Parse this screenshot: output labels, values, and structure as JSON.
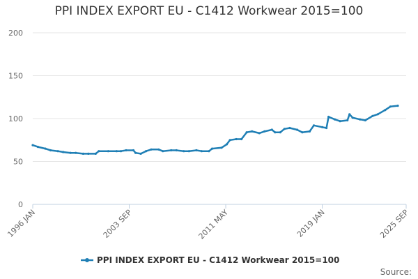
{
  "chart_data": {
    "type": "line",
    "title": "PPI INDEX EXPORT EU - C1412 Workwear 2015=100",
    "xlabel": "",
    "ylabel": "",
    "ylim": [
      0,
      200
    ],
    "yticks": [
      0,
      50,
      100,
      150,
      200
    ],
    "xlim": [
      "1996-01",
      "2025-09"
    ],
    "xticks": [
      {
        "label": "1996 JAN",
        "date": "1996-01"
      },
      {
        "label": "2003 SEP",
        "date": "2003-09"
      },
      {
        "label": "2011 MAY",
        "date": "2011-05"
      },
      {
        "label": "2019 JAN",
        "date": "2019-01"
      },
      {
        "label": "2025 SEP",
        "date": "2025-09"
      }
    ],
    "grid": "horizontal",
    "legend_position": "bottom",
    "series": [
      {
        "name": "PPI INDEX EXPORT EU - C1412 Workwear 2015=100",
        "color": "#1f7fb5",
        "points": [
          [
            "1996-01",
            69
          ],
          [
            "1996-06",
            67
          ],
          [
            "1997-01",
            65
          ],
          [
            "1997-06",
            63
          ],
          [
            "1998-01",
            62
          ],
          [
            "1998-06",
            61
          ],
          [
            "1999-01",
            60
          ],
          [
            "1999-06",
            60
          ],
          [
            "2000-01",
            59
          ],
          [
            "2000-06",
            59
          ],
          [
            "2001-01",
            59
          ],
          [
            "2001-04",
            62
          ],
          [
            "2002-01",
            62
          ],
          [
            "2002-09",
            62
          ],
          [
            "2003-01",
            62
          ],
          [
            "2003-06",
            63
          ],
          [
            "2004-01",
            63
          ],
          [
            "2004-03",
            60
          ],
          [
            "2004-08",
            59
          ],
          [
            "2005-01",
            62
          ],
          [
            "2005-06",
            64
          ],
          [
            "2006-01",
            64
          ],
          [
            "2006-05",
            62
          ],
          [
            "2007-01",
            63
          ],
          [
            "2007-06",
            63
          ],
          [
            "2008-01",
            62
          ],
          [
            "2008-06",
            62
          ],
          [
            "2009-01",
            63
          ],
          [
            "2009-06",
            62
          ],
          [
            "2010-01",
            62
          ],
          [
            "2010-04",
            65
          ],
          [
            "2011-01",
            66
          ],
          [
            "2011-06",
            70
          ],
          [
            "2011-09",
            75
          ],
          [
            "2012-03",
            76
          ],
          [
            "2012-08",
            76
          ],
          [
            "2013-01",
            84
          ],
          [
            "2013-06",
            85
          ],
          [
            "2014-01",
            83
          ],
          [
            "2014-06",
            85
          ],
          [
            "2015-01",
            87
          ],
          [
            "2015-04",
            84
          ],
          [
            "2015-09",
            84
          ],
          [
            "2016-01",
            88
          ],
          [
            "2016-06",
            89
          ],
          [
            "2017-01",
            87
          ],
          [
            "2017-06",
            84
          ],
          [
            "2018-01",
            85
          ],
          [
            "2018-05",
            92
          ],
          [
            "2019-01",
            90
          ],
          [
            "2019-05",
            89
          ],
          [
            "2019-07",
            102
          ],
          [
            "2020-01",
            99
          ],
          [
            "2020-06",
            97
          ],
          [
            "2021-01",
            98
          ],
          [
            "2021-03",
            105
          ],
          [
            "2021-06",
            101
          ],
          [
            "2022-01",
            99
          ],
          [
            "2022-06",
            98
          ],
          [
            "2023-01",
            103
          ],
          [
            "2023-06",
            105
          ],
          [
            "2024-01",
            110
          ],
          [
            "2024-06",
            114
          ],
          [
            "2025-01",
            115
          ]
        ]
      }
    ]
  },
  "source_label": "Source:"
}
